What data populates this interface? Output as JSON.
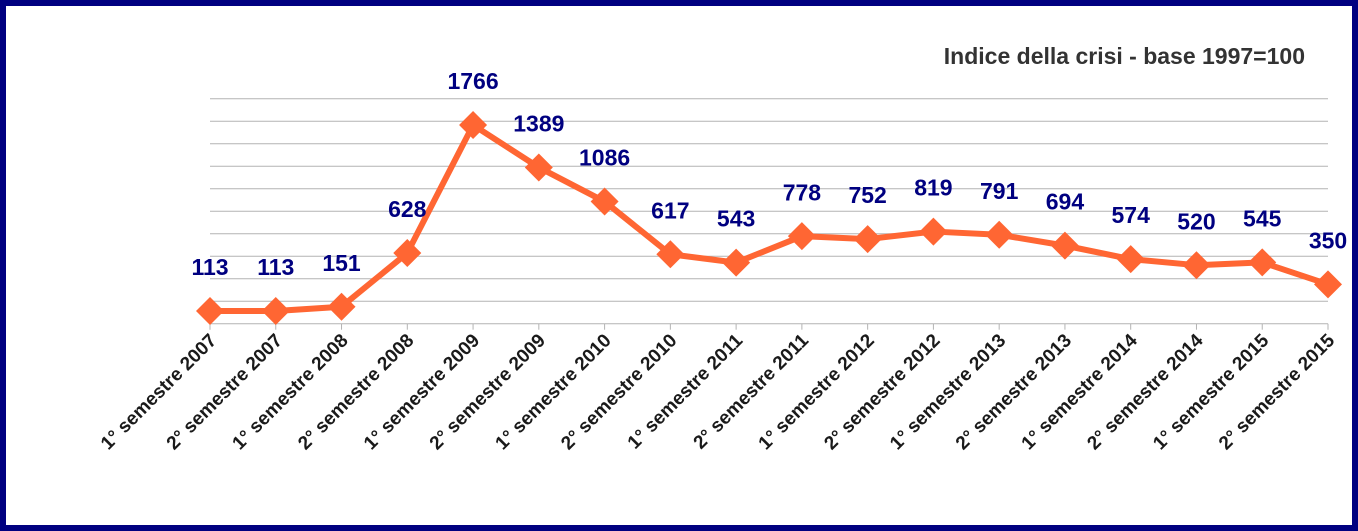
{
  "chart_data": {
    "type": "line",
    "title": "Indice della crisi - base 1997=100",
    "categories": [
      "1° semestre 2007",
      "2° semestre 2007",
      "1° semestre 2008",
      "2° semestre 2008",
      "1° semestre 2009",
      "2° semestre 2009",
      "1° semestre 2010",
      "2° semestre 2010",
      "1° semestre 2011",
      "2° semestre 2011",
      "1° semestre 2012",
      "2° semestre 2012",
      "1° semestre 2013",
      "2° semestre 2013",
      "1° semestre 2014",
      "2° semestre 2014",
      "1° semestre 2015",
      "2° semestre 2015"
    ],
    "values": [
      113,
      113,
      151,
      628,
      1766,
      1389,
      1086,
      617,
      543,
      778,
      752,
      819,
      791,
      694,
      574,
      520,
      545,
      350
    ],
    "color": "#ff6633",
    "ylim": [
      0,
      2000
    ],
    "yticks": [
      0,
      200,
      400,
      600,
      800,
      1000,
      1200,
      1400,
      1600,
      1800,
      2000
    ],
    "grid": true
  }
}
